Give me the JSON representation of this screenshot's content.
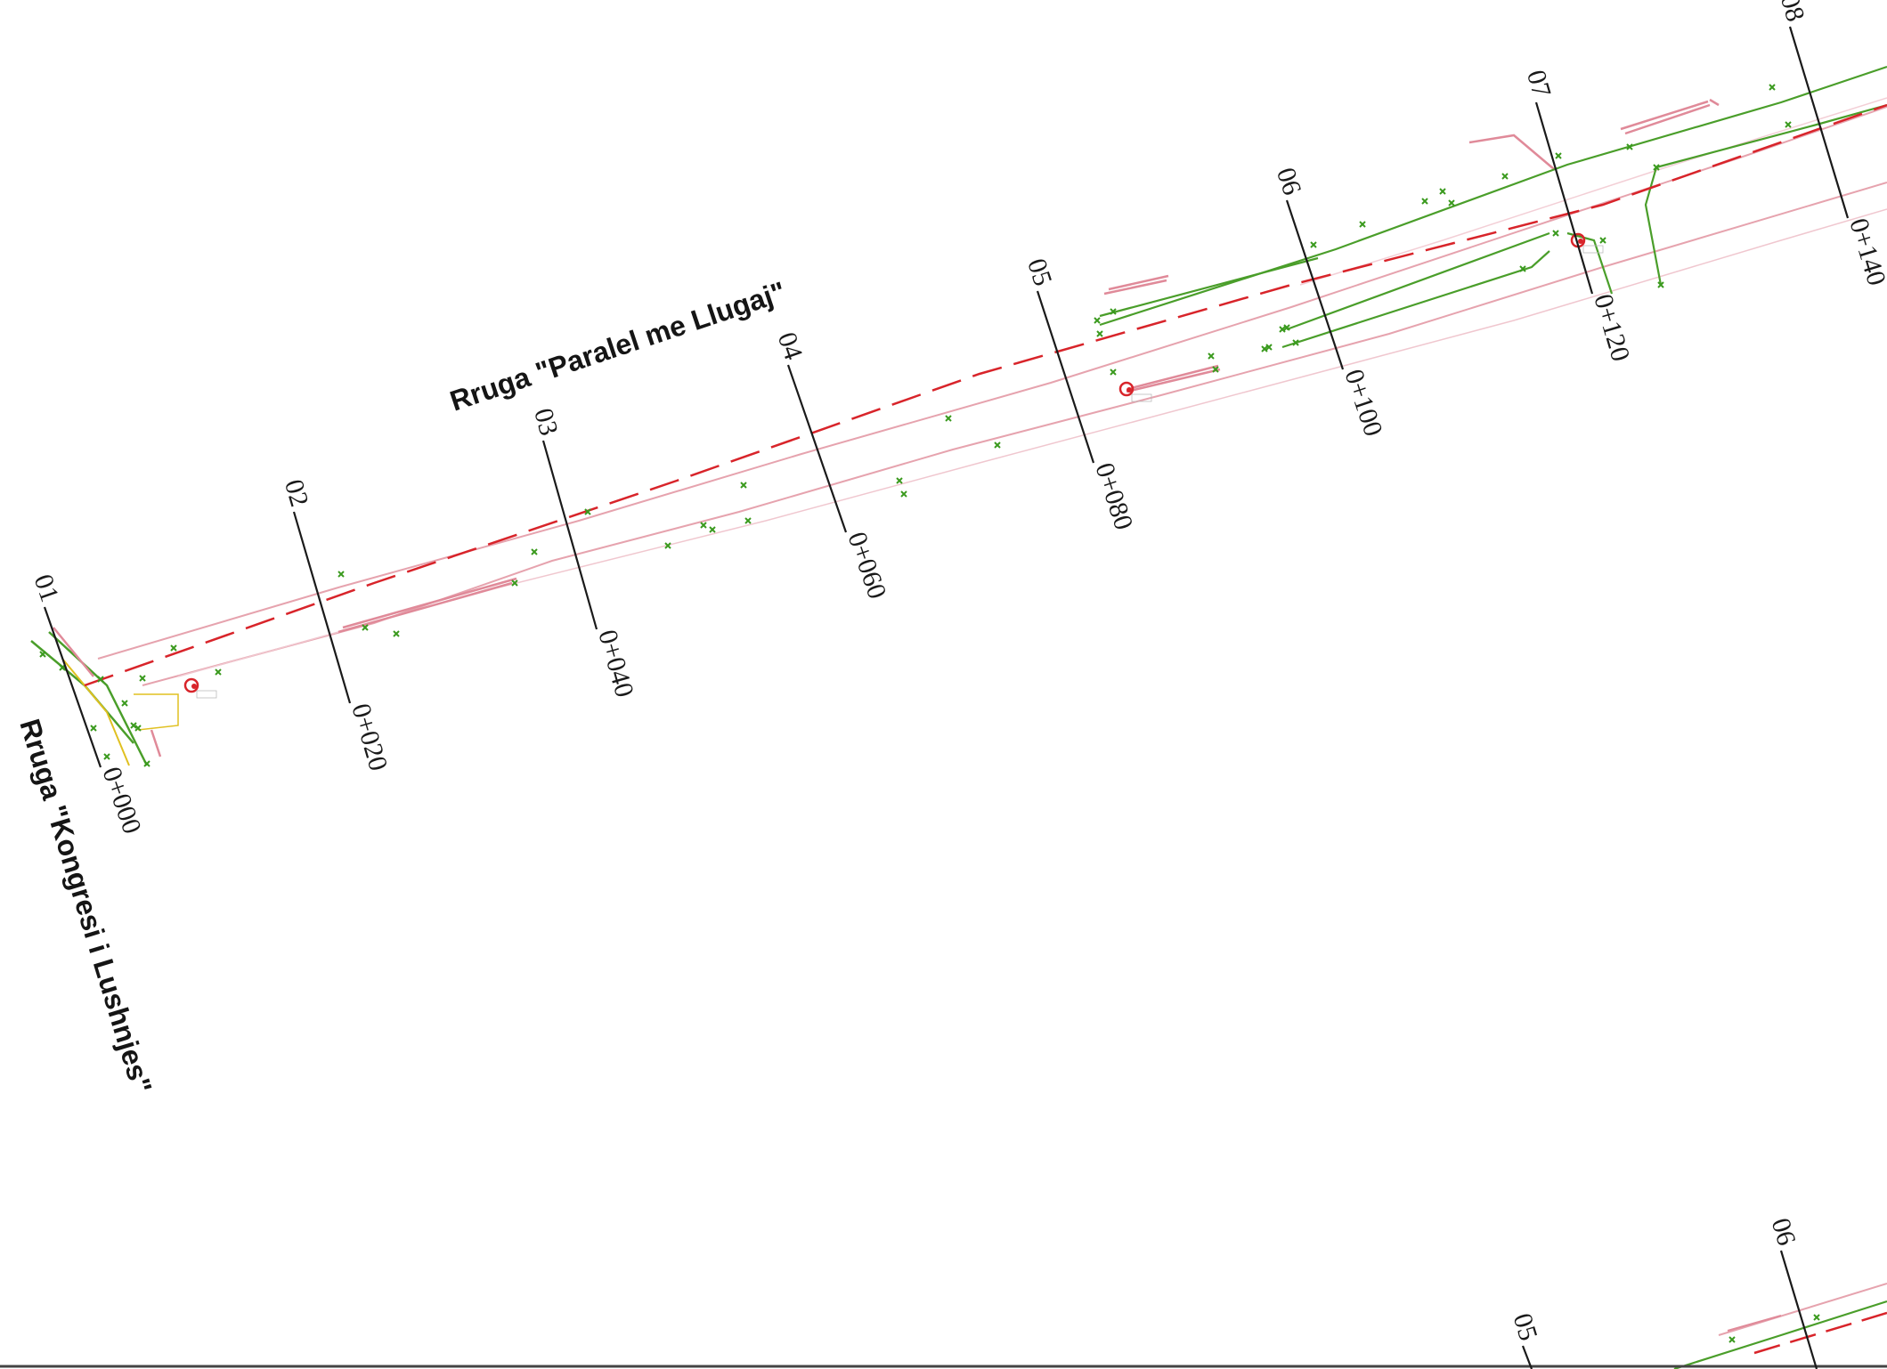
{
  "streets": {
    "main": "Rruga \"Paralel me Llugaj\"",
    "side": "Rruga \"Kongresi i Lushnjes\""
  },
  "sections": [
    {
      "id": "01",
      "chainage": "0+000"
    },
    {
      "id": "02",
      "chainage": "0+020"
    },
    {
      "id": "03",
      "chainage": "0+040"
    },
    {
      "id": "04",
      "chainage": "0+060"
    },
    {
      "id": "05",
      "chainage": "0+080"
    },
    {
      "id": "06",
      "chainage": "0+100"
    },
    {
      "id": "07",
      "chainage": "0+120"
    },
    {
      "id": "08",
      "chainage": "0+140"
    }
  ],
  "lower_sections": [
    {
      "id": "05"
    },
    {
      "id": "06"
    }
  ],
  "colors": {
    "axis": "#d8242a",
    "road_edge": "#4a9e2a",
    "sidewalk": "#e6a3ae",
    "section_line": "#1a1a1a",
    "point": "#3a9a1e",
    "yellow": "#e0c020"
  },
  "icons": [
    "pole-icon",
    "pole-icon",
    "pole-icon"
  ]
}
